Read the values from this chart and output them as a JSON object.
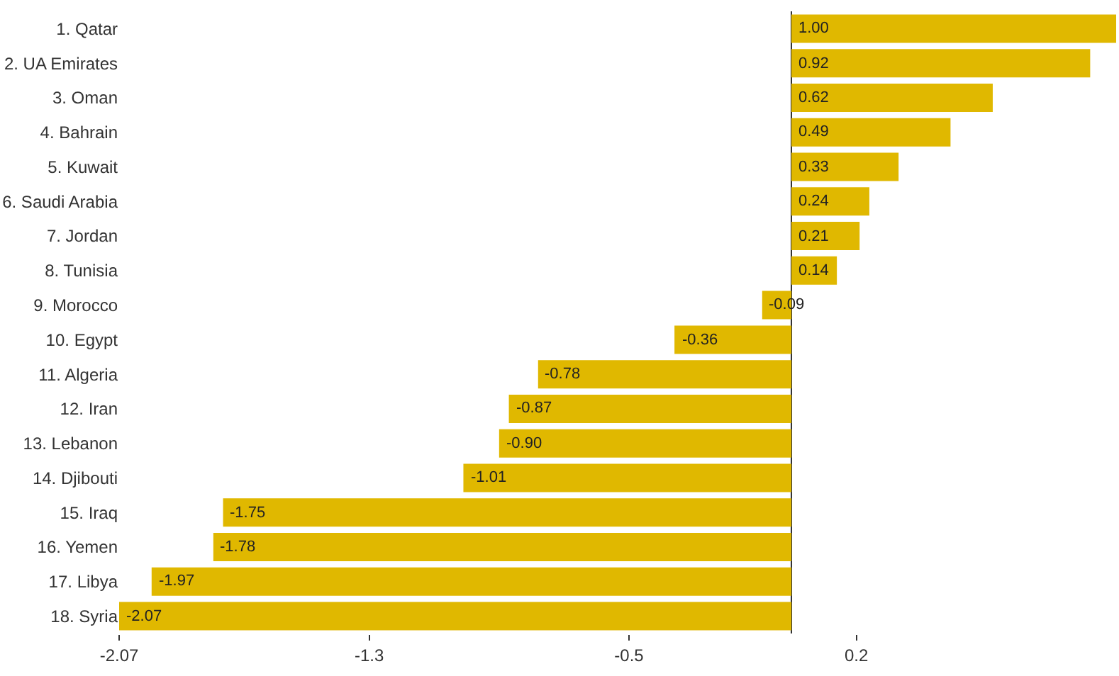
{
  "chart_data": {
    "type": "bar",
    "orientation": "horizontal",
    "categories": [
      "1. Qatar",
      "2. UA Emirates",
      "3. Oman",
      "4. Bahrain",
      "5. Kuwait",
      "6. Saudi Arabia",
      "7. Jordan",
      "8. Tunisia",
      "9. Morocco",
      "10. Egypt",
      "11. Algeria",
      "12. Iran",
      "13. Lebanon",
      "14. Djibouti",
      "15. Iraq",
      "16. Yemen",
      "17. Libya",
      "18. Syria"
    ],
    "values": [
      1.0,
      0.92,
      0.62,
      0.49,
      0.33,
      0.24,
      0.21,
      0.14,
      -0.09,
      -0.36,
      -0.78,
      -0.87,
      -0.9,
      -1.01,
      -1.75,
      -1.78,
      -1.97,
      -2.07
    ],
    "value_labels": [
      "1.00",
      "0.92",
      "0.62",
      "0.49",
      "0.33",
      "0.24",
      "0.21",
      "0.14",
      "-0.09",
      "-0.36",
      "-0.78",
      "-0.87",
      "-0.90",
      "-1.01",
      "-1.75",
      "-1.78",
      "-1.97",
      "-2.07"
    ],
    "color": "#e0b800",
    "xlim": [
      -2.07,
      1.0
    ],
    "xticks": [
      -2.07,
      -1.3,
      -0.5,
      0.2
    ],
    "legend": false
  }
}
